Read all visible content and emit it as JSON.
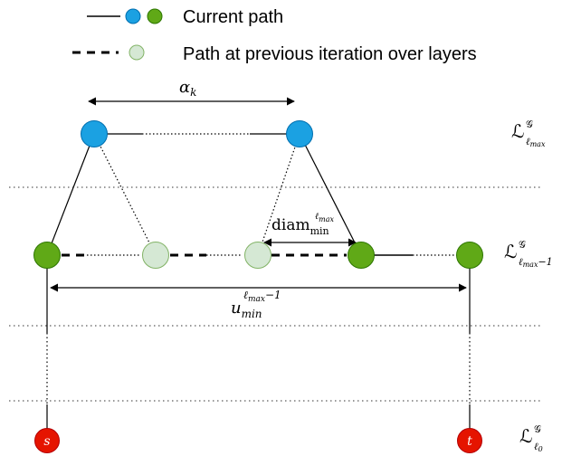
{
  "legend": {
    "current_path": "Current path",
    "previous_path": "Path at previous iteration over layers"
  },
  "labels": {
    "alpha": "α",
    "alpha_sub": "k",
    "diam": "diam",
    "diam_sub": "min",
    "diam_sup": "ℓ",
    "diam_sup_sub": "max",
    "u": "u",
    "u_sub": "min",
    "u_sup": "ℓ",
    "u_sup_sub": "max",
    "u_sup_rest": "−1",
    "source": "s",
    "target": "t"
  },
  "layers": {
    "top": {
      "L": "ℒ",
      "sup": "𝒢",
      "sub": "ℓ",
      "subsub": "max",
      "suffix": ""
    },
    "middle": {
      "L": "ℒ",
      "sup": "𝒢",
      "sub": "ℓ",
      "subsub": "max",
      "suffix": "−1"
    },
    "bottom": {
      "L": "ℒ",
      "sup": "𝒢",
      "sub": "ℓ",
      "subsub": "0",
      "suffix": ""
    }
  },
  "colors": {
    "blue": "#1ba1e2",
    "blue_stroke": "#006eaf",
    "green": "#60a917",
    "green_stroke": "#2d7600",
    "pale_green": "#d5e8d4",
    "pale_green_stroke": "#82b366",
    "red": "#e51400",
    "red_stroke": "#b20000"
  }
}
